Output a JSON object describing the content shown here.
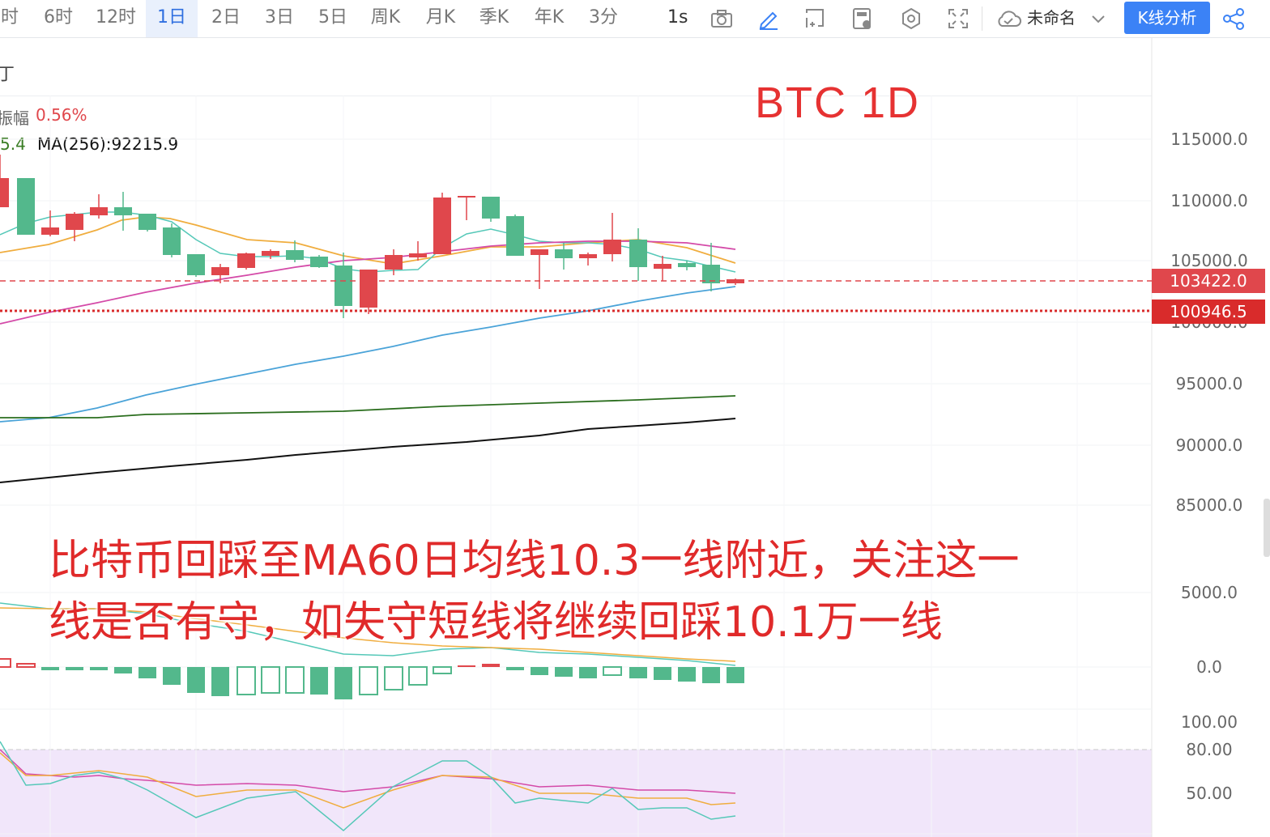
{
  "toolbar": {
    "timeframes": [
      {
        "label": "时",
        "active": false
      },
      {
        "label": "6时",
        "active": false
      },
      {
        "label": "12时",
        "active": false
      },
      {
        "label": "1日",
        "active": true
      },
      {
        "label": "2日",
        "active": false
      },
      {
        "label": "3日",
        "active": false
      },
      {
        "label": "5日",
        "active": false
      },
      {
        "label": "周K",
        "active": false
      },
      {
        "label": "月K",
        "active": false
      },
      {
        "label": "季K",
        "active": false
      },
      {
        "label": "年K",
        "active": false
      },
      {
        "label": "3分",
        "active": false
      }
    ],
    "interval_label": "1s",
    "icons": [
      "camera-icon",
      "pencil-icon",
      "crop-icon",
      "calculator-icon",
      "settings-icon",
      "fullscreen-icon",
      "cloud-icon"
    ],
    "save_name": "未命名",
    "kline_button": "K线分析"
  },
  "pane": {
    "title_fragment": "丁",
    "amplitude_label": "振幅",
    "amplitude_value": "0.56%",
    "ma_partial": "5.4",
    "ma256": "MA(256):92215.9"
  },
  "overlay": {
    "title": "BTC    1D",
    "note_line1": "比特币回踩至MA60日均线10.3一线附近，关注这一",
    "note_line2": "线是否有守，如失守短线将继续回踩10.1万一线"
  },
  "axis": {
    "price_labels": [
      "115000.0",
      "110000.0",
      "105000.0",
      "100000.0",
      "95000.0",
      "90000.0",
      "85000.0"
    ],
    "macd_labels": [
      "5000.0",
      "0.0"
    ],
    "kdj_labels": [
      "100.00",
      "80.00",
      "50.00"
    ],
    "current_price": "103422.0",
    "line_price": "100946.5"
  },
  "colors": {
    "up": "#e0474c",
    "down": "#53b88c",
    "accent": "#3b82f6",
    "kdj_band": "#f1e6fa"
  }
}
